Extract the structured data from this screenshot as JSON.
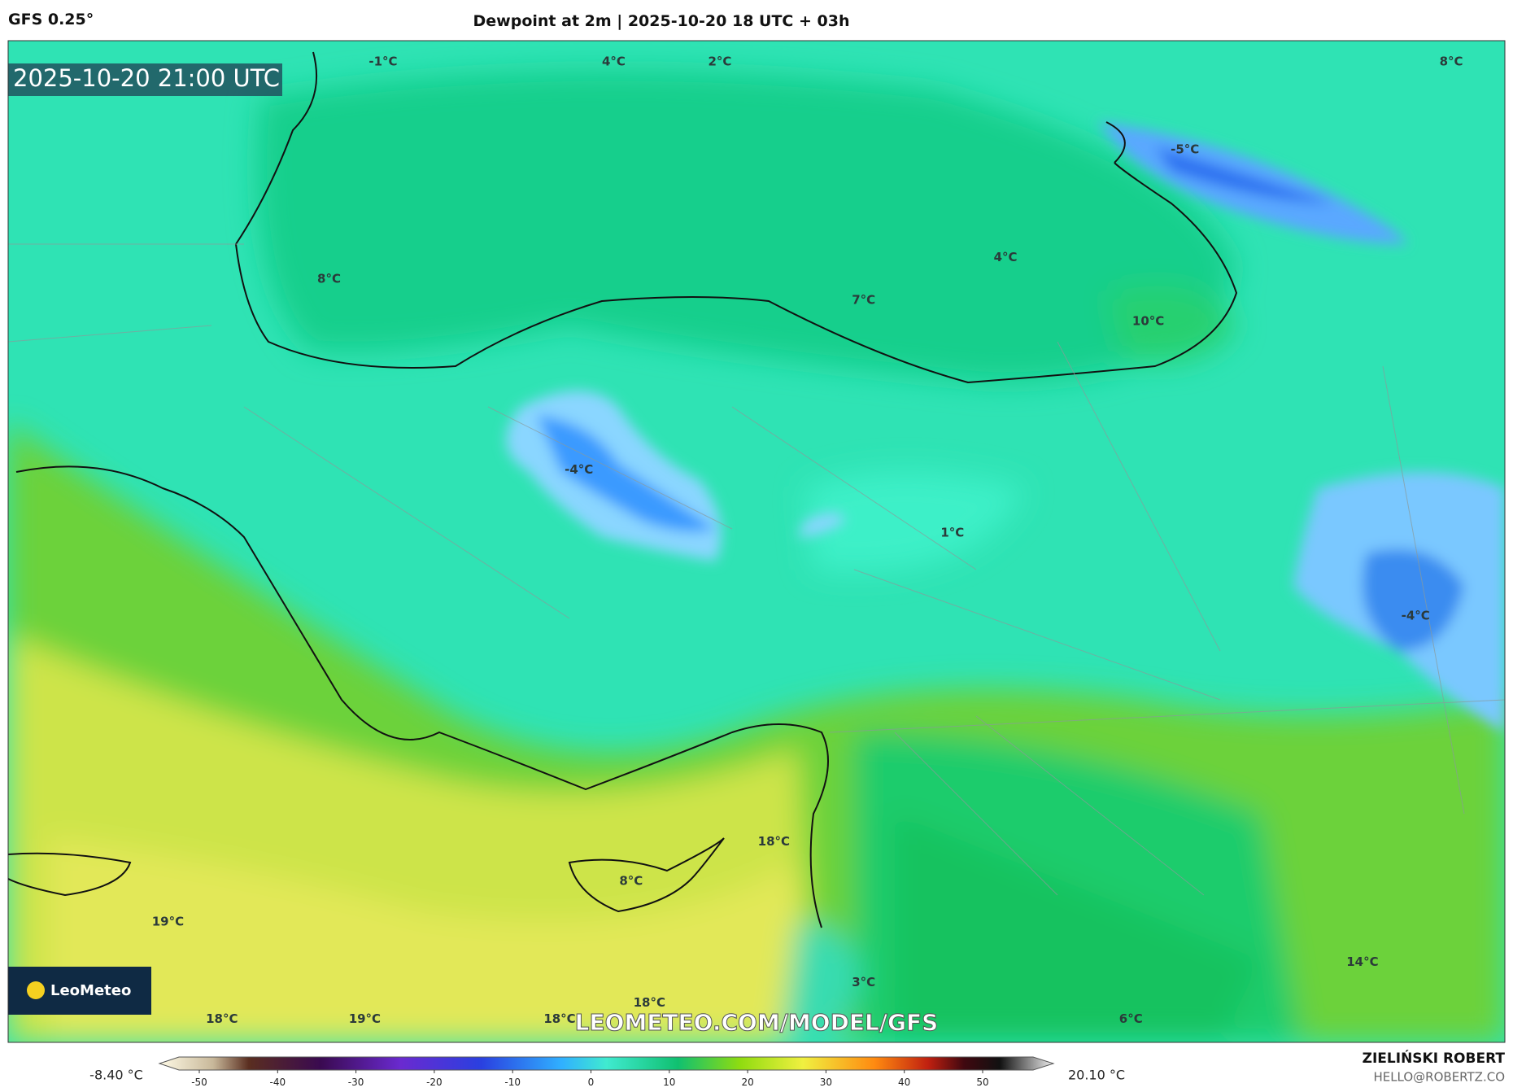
{
  "header": {
    "model": "GFS 0.25°",
    "title": "Dewpoint at 2m | 2025-10-20 18 UTC + 03h"
  },
  "map": {
    "timestamp": "2025-10-20 21:00 UTC",
    "watermark": "LEOMETEO.COM/MODEL/GFS",
    "logo": "LeoMeteo",
    "labels": [
      "-1°C",
      "4°C",
      "2°C",
      "8°C",
      "-5°C",
      "4°C",
      "8°C",
      "7°C",
      "10°C",
      "-4°C",
      "1°C",
      "-4°C",
      "18°C",
      "8°C",
      "19°C",
      "14°C",
      "3°C",
      "18°C",
      "18°C",
      "19°C",
      "18°C",
      "6°C"
    ]
  },
  "colorbar": {
    "min_label": "-8.40 °C",
    "max_label": "20.10 °C",
    "ticks": [
      "-50",
      "-40",
      "-30",
      "-20",
      "-10",
      "0",
      "10",
      "20",
      "30",
      "40",
      "50"
    ]
  },
  "footer": {
    "author": "ZIELIŃSKI ROBERT",
    "email": "HELLO@ROBERTZ.CO"
  }
}
